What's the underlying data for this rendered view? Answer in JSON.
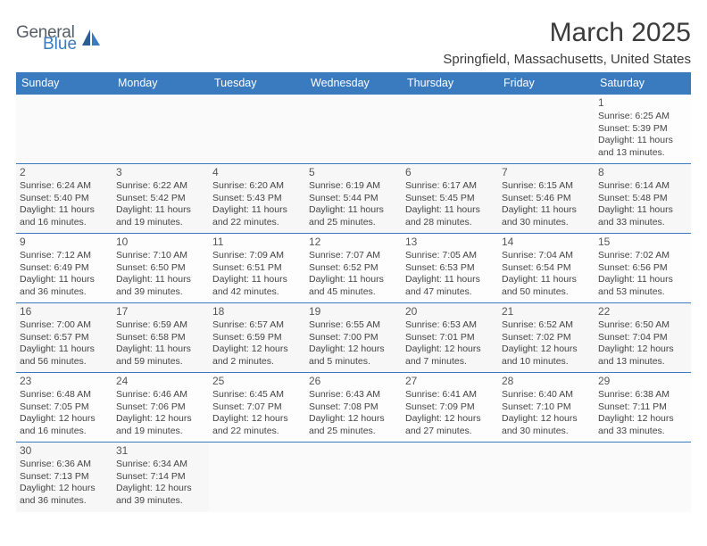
{
  "logo": {
    "general": "General",
    "blue": "Blue"
  },
  "title": "March 2025",
  "location": "Springfield, Massachusetts, United States",
  "header_bg": "#3a7abf",
  "header_fg": "#ffffff",
  "border_color": "#3a7abf",
  "weekdays": [
    "Sunday",
    "Monday",
    "Tuesday",
    "Wednesday",
    "Thursday",
    "Friday",
    "Saturday"
  ],
  "weeks": [
    [
      null,
      null,
      null,
      null,
      null,
      null,
      {
        "n": "1",
        "sr": "Sunrise: 6:25 AM",
        "ss": "Sunset: 5:39 PM",
        "dl1": "Daylight: 11 hours",
        "dl2": "and 13 minutes."
      }
    ],
    [
      {
        "n": "2",
        "sr": "Sunrise: 6:24 AM",
        "ss": "Sunset: 5:40 PM",
        "dl1": "Daylight: 11 hours",
        "dl2": "and 16 minutes."
      },
      {
        "n": "3",
        "sr": "Sunrise: 6:22 AM",
        "ss": "Sunset: 5:42 PM",
        "dl1": "Daylight: 11 hours",
        "dl2": "and 19 minutes."
      },
      {
        "n": "4",
        "sr": "Sunrise: 6:20 AM",
        "ss": "Sunset: 5:43 PM",
        "dl1": "Daylight: 11 hours",
        "dl2": "and 22 minutes."
      },
      {
        "n": "5",
        "sr": "Sunrise: 6:19 AM",
        "ss": "Sunset: 5:44 PM",
        "dl1": "Daylight: 11 hours",
        "dl2": "and 25 minutes."
      },
      {
        "n": "6",
        "sr": "Sunrise: 6:17 AM",
        "ss": "Sunset: 5:45 PM",
        "dl1": "Daylight: 11 hours",
        "dl2": "and 28 minutes."
      },
      {
        "n": "7",
        "sr": "Sunrise: 6:15 AM",
        "ss": "Sunset: 5:46 PM",
        "dl1": "Daylight: 11 hours",
        "dl2": "and 30 minutes."
      },
      {
        "n": "8",
        "sr": "Sunrise: 6:14 AM",
        "ss": "Sunset: 5:48 PM",
        "dl1": "Daylight: 11 hours",
        "dl2": "and 33 minutes."
      }
    ],
    [
      {
        "n": "9",
        "sr": "Sunrise: 7:12 AM",
        "ss": "Sunset: 6:49 PM",
        "dl1": "Daylight: 11 hours",
        "dl2": "and 36 minutes."
      },
      {
        "n": "10",
        "sr": "Sunrise: 7:10 AM",
        "ss": "Sunset: 6:50 PM",
        "dl1": "Daylight: 11 hours",
        "dl2": "and 39 minutes."
      },
      {
        "n": "11",
        "sr": "Sunrise: 7:09 AM",
        "ss": "Sunset: 6:51 PM",
        "dl1": "Daylight: 11 hours",
        "dl2": "and 42 minutes."
      },
      {
        "n": "12",
        "sr": "Sunrise: 7:07 AM",
        "ss": "Sunset: 6:52 PM",
        "dl1": "Daylight: 11 hours",
        "dl2": "and 45 minutes."
      },
      {
        "n": "13",
        "sr": "Sunrise: 7:05 AM",
        "ss": "Sunset: 6:53 PM",
        "dl1": "Daylight: 11 hours",
        "dl2": "and 47 minutes."
      },
      {
        "n": "14",
        "sr": "Sunrise: 7:04 AM",
        "ss": "Sunset: 6:54 PM",
        "dl1": "Daylight: 11 hours",
        "dl2": "and 50 minutes."
      },
      {
        "n": "15",
        "sr": "Sunrise: 7:02 AM",
        "ss": "Sunset: 6:56 PM",
        "dl1": "Daylight: 11 hours",
        "dl2": "and 53 minutes."
      }
    ],
    [
      {
        "n": "16",
        "sr": "Sunrise: 7:00 AM",
        "ss": "Sunset: 6:57 PM",
        "dl1": "Daylight: 11 hours",
        "dl2": "and 56 minutes."
      },
      {
        "n": "17",
        "sr": "Sunrise: 6:59 AM",
        "ss": "Sunset: 6:58 PM",
        "dl1": "Daylight: 11 hours",
        "dl2": "and 59 minutes."
      },
      {
        "n": "18",
        "sr": "Sunrise: 6:57 AM",
        "ss": "Sunset: 6:59 PM",
        "dl1": "Daylight: 12 hours",
        "dl2": "and 2 minutes."
      },
      {
        "n": "19",
        "sr": "Sunrise: 6:55 AM",
        "ss": "Sunset: 7:00 PM",
        "dl1": "Daylight: 12 hours",
        "dl2": "and 5 minutes."
      },
      {
        "n": "20",
        "sr": "Sunrise: 6:53 AM",
        "ss": "Sunset: 7:01 PM",
        "dl1": "Daylight: 12 hours",
        "dl2": "and 7 minutes."
      },
      {
        "n": "21",
        "sr": "Sunrise: 6:52 AM",
        "ss": "Sunset: 7:02 PM",
        "dl1": "Daylight: 12 hours",
        "dl2": "and 10 minutes."
      },
      {
        "n": "22",
        "sr": "Sunrise: 6:50 AM",
        "ss": "Sunset: 7:04 PM",
        "dl1": "Daylight: 12 hours",
        "dl2": "and 13 minutes."
      }
    ],
    [
      {
        "n": "23",
        "sr": "Sunrise: 6:48 AM",
        "ss": "Sunset: 7:05 PM",
        "dl1": "Daylight: 12 hours",
        "dl2": "and 16 minutes."
      },
      {
        "n": "24",
        "sr": "Sunrise: 6:46 AM",
        "ss": "Sunset: 7:06 PM",
        "dl1": "Daylight: 12 hours",
        "dl2": "and 19 minutes."
      },
      {
        "n": "25",
        "sr": "Sunrise: 6:45 AM",
        "ss": "Sunset: 7:07 PM",
        "dl1": "Daylight: 12 hours",
        "dl2": "and 22 minutes."
      },
      {
        "n": "26",
        "sr": "Sunrise: 6:43 AM",
        "ss": "Sunset: 7:08 PM",
        "dl1": "Daylight: 12 hours",
        "dl2": "and 25 minutes."
      },
      {
        "n": "27",
        "sr": "Sunrise: 6:41 AM",
        "ss": "Sunset: 7:09 PM",
        "dl1": "Daylight: 12 hours",
        "dl2": "and 27 minutes."
      },
      {
        "n": "28",
        "sr": "Sunrise: 6:40 AM",
        "ss": "Sunset: 7:10 PM",
        "dl1": "Daylight: 12 hours",
        "dl2": "and 30 minutes."
      },
      {
        "n": "29",
        "sr": "Sunrise: 6:38 AM",
        "ss": "Sunset: 7:11 PM",
        "dl1": "Daylight: 12 hours",
        "dl2": "and 33 minutes."
      }
    ],
    [
      {
        "n": "30",
        "sr": "Sunrise: 6:36 AM",
        "ss": "Sunset: 7:13 PM",
        "dl1": "Daylight: 12 hours",
        "dl2": "and 36 minutes."
      },
      {
        "n": "31",
        "sr": "Sunrise: 6:34 AM",
        "ss": "Sunset: 7:14 PM",
        "dl1": "Daylight: 12 hours",
        "dl2": "and 39 minutes."
      },
      null,
      null,
      null,
      null,
      null
    ]
  ]
}
